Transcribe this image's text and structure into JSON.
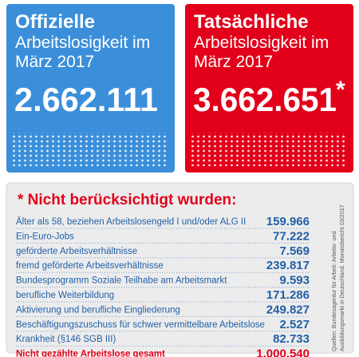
{
  "boxes": [
    {
      "heading": "Offizielle",
      "line1": "Arbeitslosigkeit im",
      "line2": "März 2017",
      "number": "2.662.111"
    },
    {
      "heading": "Tatsächliche",
      "line1": "Arbeitslosigkeit im",
      "line2": "März 2017",
      "number": "3.662.651",
      "marker": "*"
    }
  ],
  "table": {
    "title": "* Nicht berücksichtigt wurden:",
    "rows": [
      [
        "Älter als 58, beziehen Arbeitslosengeld I und/oder ALG II",
        "159.966"
      ],
      [
        "Ein-Euro-Jobs",
        "77.222"
      ],
      [
        "geförderte Arbeitsverhältnisse",
        "7.569"
      ],
      [
        "fremd geförderte Arbeitsverhältnisse",
        "239.817"
      ],
      [
        "Bundesprogramm Soziale Teilhabe am Arbeitsmarkt",
        "9.593"
      ],
      [
        "berufliche Weiterbildung",
        "171.286"
      ],
      [
        "Aktivierung und berufliche Eingliederung",
        "249.827"
      ],
      [
        "Beschäftigungszuschuss für schwer vermittelbare Arbeitslose",
        "2.527"
      ],
      [
        "Krankheit (§146 SGB III)",
        "82.733"
      ]
    ],
    "total": [
      "Nicht gezählte Arbeitslose gesamt",
      "1.000.540"
    ]
  },
  "source": {
    "line1": "Quellen: Bundesagentur für Arbeit: Arbeits- und",
    "line2": "Ausbildungsmarkt in Deutschland, Monatsbericht 03/2017"
  }
}
